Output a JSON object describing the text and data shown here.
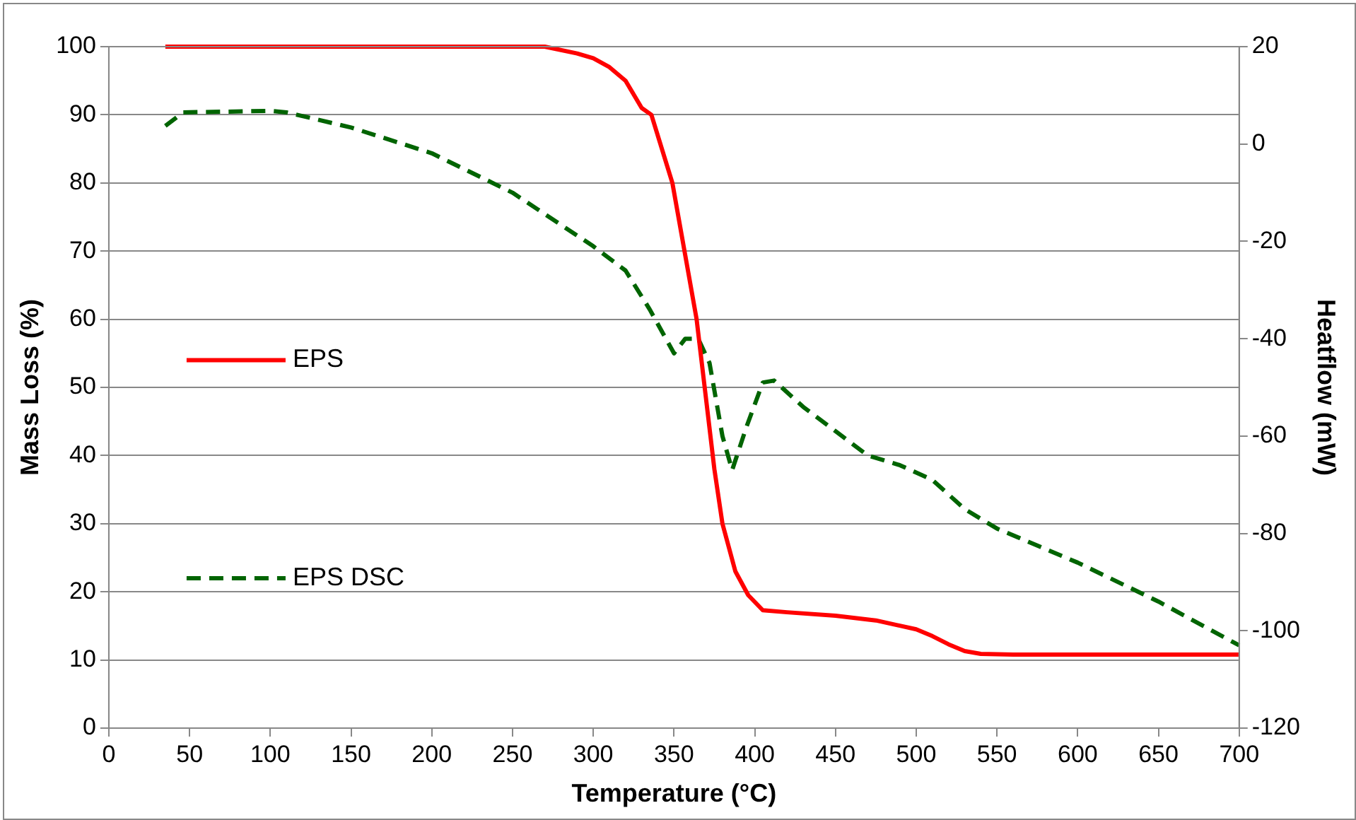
{
  "chart_data": {
    "type": "line",
    "xlabel": "Temperature (°C)",
    "ylabel": "Mass Loss (%)",
    "y2label": "Heatflow (mW)",
    "xlim": [
      0,
      700
    ],
    "xticks": [
      0,
      50,
      100,
      150,
      200,
      250,
      300,
      350,
      400,
      450,
      500,
      550,
      600,
      650,
      700
    ],
    "ylim": [
      0,
      100
    ],
    "yticks": [
      0,
      10,
      20,
      30,
      40,
      50,
      60,
      70,
      80,
      90,
      100
    ],
    "y2lim": [
      -120,
      20
    ],
    "y2ticks": [
      -120,
      -100,
      -80,
      -60,
      -40,
      -20,
      0,
      20
    ],
    "grid": "y",
    "legend": "left",
    "marker": "none",
    "series": [
      {
        "name": "EPS",
        "color": "#ff0000",
        "line_style": "solid",
        "x": [
          35,
          100,
          200,
          250,
          270,
          290,
          300,
          310,
          320,
          330,
          336,
          349,
          364,
          369,
          375,
          380,
          388,
          396,
          405,
          420,
          450,
          475,
          500,
          510,
          520,
          530,
          540,
          560,
          700
        ],
        "values": [
          100,
          100,
          100,
          100,
          100,
          99,
          98.3,
          97,
          95,
          91,
          90,
          80,
          60,
          50,
          38,
          30,
          23,
          19.5,
          17.3,
          17,
          16.5,
          15.8,
          14.5,
          13.5,
          12.3,
          11.3,
          10.9,
          10.8,
          10.8
        ]
      },
      {
        "name": "EPS DSC",
        "color": "#006400",
        "line_style": "dashed",
        "axis": "y2",
        "x": [
          35,
          46,
          100,
          110,
          150,
          200,
          250,
          300,
          320,
          335,
          350,
          357,
          365,
          372,
          380,
          386,
          395,
          405,
          412,
          430,
          450,
          470,
          490,
          510,
          530,
          550,
          600,
          650,
          700
        ],
        "values": [
          3.7,
          6.5,
          6.8,
          6.5,
          3.4,
          -1.9,
          -10,
          -21,
          -26,
          -34,
          -43,
          -40,
          -40,
          -45,
          -60,
          -67,
          -58,
          -49,
          -48.6,
          -54,
          -59,
          -64,
          -66,
          -69,
          -75,
          -79,
          -86,
          -94,
          -103
        ]
      }
    ]
  }
}
